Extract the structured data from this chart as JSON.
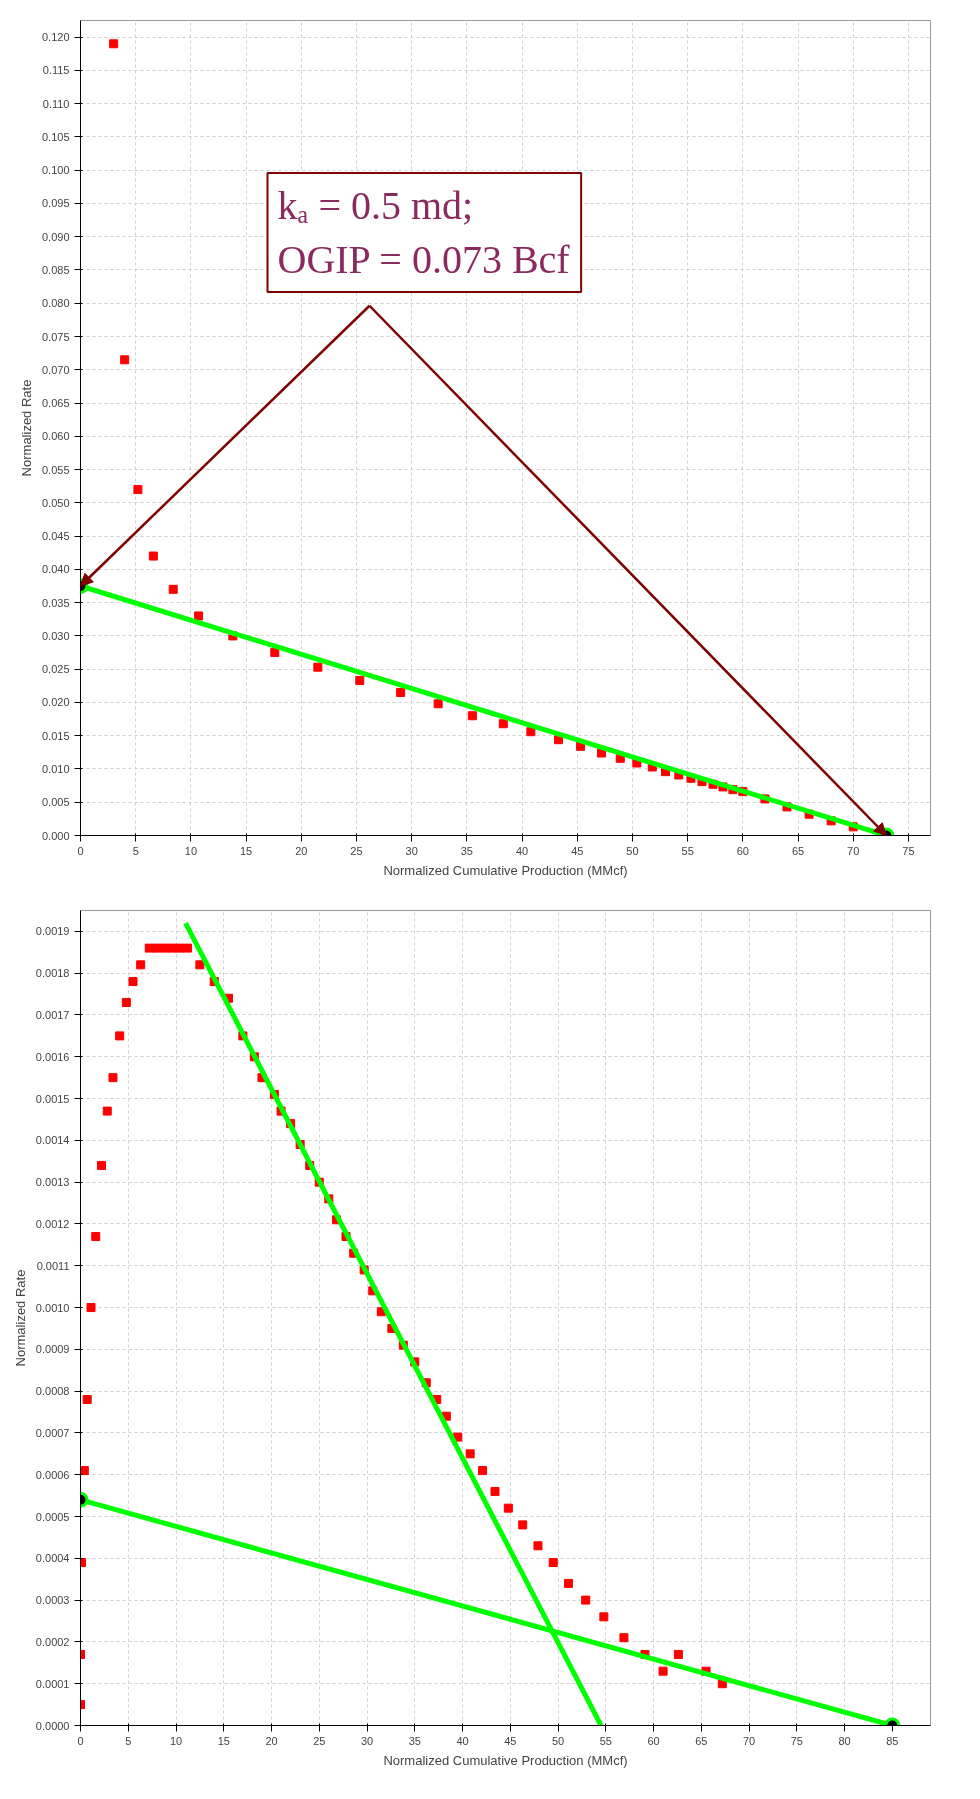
{
  "chart_data": [
    {
      "type": "scatter",
      "xlabel": "Normalized Cumulative Production (MMcf)",
      "ylabel": "Normalized Rate",
      "grid": true,
      "annotations": [
        "kₐ = 0.5 md;\nOGIP = 0.073 Bcf"
      ],
      "xlim": [
        0,
        77
      ],
      "xticks": [
        0,
        5,
        10,
        15,
        20,
        25,
        30,
        35,
        40,
        45,
        50,
        55,
        60,
        65,
        70,
        75
      ],
      "ylim": [
        0,
        0.1225
      ],
      "yticks": [
        {
          "value": 0,
          "label": "0.000"
        },
        {
          "value": 0.005,
          "label": "0.005"
        },
        {
          "value": 0.01,
          "label": "0.010"
        },
        {
          "value": 0.015,
          "label": "0.015"
        },
        {
          "value": 0.02,
          "label": "0.020"
        },
        {
          "value": 0.025,
          "label": "0.025"
        },
        {
          "value": 0.03,
          "label": "0.030"
        },
        {
          "value": 0.035,
          "label": "0.035"
        },
        {
          "value": 0.04,
          "label": "0.040"
        },
        {
          "value": 0.045,
          "label": "0.045"
        },
        {
          "value": 0.05,
          "label": "0.050"
        },
        {
          "value": 0.055,
          "label": "0.055"
        },
        {
          "value": 0.06,
          "label": "0.060"
        },
        {
          "value": 0.065,
          "label": "0.065"
        },
        {
          "value": 0.07,
          "label": "0.070"
        },
        {
          "value": 0.075,
          "label": "0.075"
        },
        {
          "value": 0.08,
          "label": "0.080"
        },
        {
          "value": 0.085,
          "label": "0.085"
        },
        {
          "value": 0.09,
          "label": "0.090"
        },
        {
          "value": 0.095,
          "label": "0.095"
        },
        {
          "value": 0.1,
          "label": "0.100"
        },
        {
          "value": 0.105,
          "label": "0.105"
        },
        {
          "value": 0.11,
          "label": "0.110"
        },
        {
          "value": 0.115,
          "label": "0.115"
        },
        {
          "value": 0.12,
          "label": "0.120"
        }
      ],
      "series": [
        {
          "color": "#ff0000",
          "marker": "square",
          "x": [
            3.0,
            4.0,
            5.2,
            6.6,
            8.4,
            10.7,
            13.8,
            17.6,
            21.5,
            25.3,
            29.0,
            32.4,
            35.5,
            38.3,
            40.8,
            43.3,
            45.3,
            47.2,
            48.9,
            50.4,
            51.8,
            53.0,
            54.2,
            55.3,
            56.3,
            57.3,
            58.2,
            59.1,
            60.0,
            62.0,
            64.0,
            66.0,
            68.0,
            70.0
          ],
          "values": [
            0.119,
            0.0715,
            0.052,
            0.042,
            0.037,
            0.033,
            0.03,
            0.0275,
            0.0253,
            0.0233,
            0.0215,
            0.0198,
            0.018,
            0.0168,
            0.0156,
            0.0144,
            0.0134,
            0.0124,
            0.0116,
            0.0109,
            0.0103,
            0.0096,
            0.0091,
            0.0086,
            0.0081,
            0.0077,
            0.0073,
            0.0069,
            0.0066,
            0.0055,
            0.0043,
            0.0032,
            0.0022,
            0.0013
          ]
        },
        {
          "type": "line",
          "color": "#00ff00",
          "marker": "circle",
          "x": [
            0,
            73
          ],
          "values": [
            0.0375,
            0
          ]
        }
      ]
    },
    {
      "type": "scatter",
      "xlabel": "Normalized Cumulative Production (MMcf)",
      "ylabel": "Normalized Rate",
      "grid": true,
      "xlim": [
        0,
        89
      ],
      "xticks": [
        0,
        5,
        10,
        15,
        20,
        25,
        30,
        35,
        40,
        45,
        50,
        55,
        60,
        65,
        70,
        75,
        80,
        85
      ],
      "ylim": [
        0,
        0.00195
      ],
      "yticks": [
        {
          "value": 0,
          "label": "0.0000"
        },
        {
          "value": 0.0001,
          "label": "0.0001"
        },
        {
          "value": 0.0002,
          "label": "0.0002"
        },
        {
          "value": 0.0003,
          "label": "0.0003"
        },
        {
          "value": 0.0004,
          "label": "0.0004"
        },
        {
          "value": 0.0005,
          "label": "0.0005"
        },
        {
          "value": 0.0006,
          "label": "0.0006"
        },
        {
          "value": 0.0007,
          "label": "0.0007"
        },
        {
          "value": 0.0008,
          "label": "0.0008"
        },
        {
          "value": 0.0009,
          "label": "0.0009"
        },
        {
          "value": 0.001,
          "label": "0.0010"
        },
        {
          "value": 0.0011,
          "label": "0.0011"
        },
        {
          "value": 0.0012,
          "label": "0.0012"
        },
        {
          "value": 0.0013,
          "label": "0.0013"
        },
        {
          "value": 0.0014,
          "label": "0.0014"
        },
        {
          "value": 0.0015,
          "label": "0.0015"
        },
        {
          "value": 0.0016,
          "label": "0.0016"
        },
        {
          "value": 0.0017,
          "label": "0.0017"
        },
        {
          "value": 0.0018,
          "label": "0.0018"
        },
        {
          "value": 0.0019,
          "label": "0.0019"
        }
      ],
      "series": [
        {
          "color": "#ff0000",
          "marker": "square",
          "x": [
            0,
            0,
            0.1,
            0.4,
            0.7,
            1.1,
            1.6,
            2.2,
            2.8,
            3.4,
            4.1,
            4.8,
            5.5,
            6.3,
            7.2,
            8.0,
            8.8,
            9.6,
            10.4,
            11.2,
            12.5,
            14.0,
            15.5,
            17.0,
            18.2,
            19.0,
            20.3,
            21.0,
            22.0,
            23.0,
            24.0,
            25.0,
            26.0,
            26.8,
            27.8,
            28.6,
            29.7,
            30.6,
            31.5,
            32.6,
            33.8,
            35.0,
            36.2,
            37.3,
            38.3,
            39.5,
            40.8,
            42.1,
            43.4,
            44.8,
            46.3,
            47.9,
            49.5,
            51.1,
            52.9,
            54.8,
            56.9,
            59.1,
            61.0,
            62.6,
            65.5,
            67.2
          ],
          "values": [
            5e-05,
            0.00017,
            0.00039,
            0.00061,
            0.00078,
            0.001,
            0.00117,
            0.00134,
            0.00147,
            0.00155,
            0.00165,
            0.00173,
            0.00178,
            0.00182,
            0.00186,
            0.00186,
            0.00186,
            0.00186,
            0.00186,
            0.00186,
            0.00182,
            0.00178,
            0.00174,
            0.00165,
            0.0016,
            0.00155,
            0.00151,
            0.00147,
            0.00144,
            0.00139,
            0.00134,
            0.0013,
            0.00126,
            0.00121,
            0.00117,
            0.00113,
            0.00109,
            0.00104,
            0.00099,
            0.00095,
            0.00091,
            0.00087,
            0.00082,
            0.00078,
            0.00074,
            0.00069,
            0.00065,
            0.00061,
            0.00056,
            0.00052,
            0.00048,
            0.00043,
            0.00039,
            0.00034,
            0.0003,
            0.00026,
            0.00021,
            0.00017,
            0.00013,
            0.00017,
            0.00013,
            0.0001
          ]
        },
        {
          "type": "line",
          "color": "#00ff00",
          "x": [
            11,
            54.5
          ],
          "values": [
            0.00192,
            0
          ]
        },
        {
          "type": "line",
          "color": "#00ff00",
          "marker": "circle",
          "x": [
            0,
            85
          ],
          "values": [
            0.00054,
            0
          ]
        }
      ]
    }
  ]
}
